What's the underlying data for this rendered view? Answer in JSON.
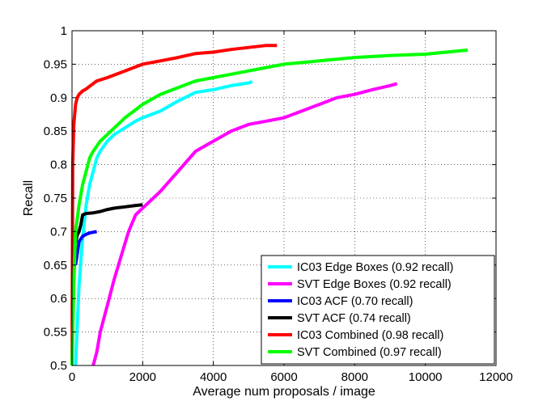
{
  "chart_data": {
    "type": "line",
    "title": "",
    "xlabel": "Average num proposals / image",
    "ylabel": "Recall",
    "xlim": [
      0,
      12000
    ],
    "ylim": [
      0.5,
      1.0
    ],
    "xticks": [
      0,
      2000,
      4000,
      6000,
      8000,
      10000,
      12000
    ],
    "xtick_labels": [
      "0",
      "2000",
      "4000",
      "6000",
      "8000",
      "10000",
      "12000"
    ],
    "yticks": [
      0.5,
      0.55,
      0.6,
      0.65,
      0.7,
      0.75,
      0.8,
      0.85,
      0.9,
      0.95,
      1.0
    ],
    "ytick_labels": [
      "0.5",
      "0.55",
      "0.6",
      "0.65",
      "0.7",
      "0.75",
      "0.8",
      "0.85",
      "0.9",
      "0.95",
      "1"
    ],
    "grid": true,
    "legend_position": "bottom-right",
    "series": [
      {
        "name": "IC03 Edge Boxes (0.92 recall)",
        "color": "#00ffff",
        "x": [
          100,
          150,
          200,
          300,
          400,
          500,
          600,
          700,
          800,
          1000,
          1200,
          1500,
          1800,
          2000,
          2500,
          3000,
          3500,
          4000,
          4500,
          5000,
          5100
        ],
        "y": [
          0.5,
          0.56,
          0.62,
          0.69,
          0.74,
          0.77,
          0.79,
          0.81,
          0.82,
          0.835,
          0.845,
          0.855,
          0.865,
          0.87,
          0.88,
          0.895,
          0.908,
          0.912,
          0.918,
          0.922,
          0.924
        ]
      },
      {
        "name": "SVT Edge Boxes (0.92 recall)",
        "color": "#ff00ff",
        "x": [
          600,
          700,
          800,
          1000,
          1200,
          1400,
          1600,
          1800,
          2000,
          2500,
          3000,
          3500,
          4000,
          4500,
          5000,
          5500,
          6000,
          6500,
          7000,
          7500,
          8000,
          8500,
          9000,
          9200
        ],
        "y": [
          0.5,
          0.52,
          0.55,
          0.59,
          0.63,
          0.665,
          0.7,
          0.725,
          0.735,
          0.76,
          0.79,
          0.82,
          0.835,
          0.85,
          0.86,
          0.865,
          0.87,
          0.88,
          0.89,
          0.9,
          0.905,
          0.912,
          0.918,
          0.921
        ]
      },
      {
        "name": "IC03 ACF (0.70 recall)",
        "color": "#0000ff",
        "x": [
          100,
          200,
          300,
          400,
          500,
          600,
          700
        ],
        "y": [
          0.65,
          0.685,
          0.693,
          0.696,
          0.698,
          0.699,
          0.7
        ]
      },
      {
        "name": "SVT ACF (0.74 recall)",
        "color": "#000000",
        "x": [
          80,
          150,
          200,
          250,
          300,
          400,
          600,
          800,
          1000,
          1200,
          1500,
          1800,
          2000
        ],
        "y": [
          0.68,
          0.695,
          0.7,
          0.71,
          0.725,
          0.727,
          0.728,
          0.73,
          0.733,
          0.735,
          0.737,
          0.739,
          0.74
        ]
      },
      {
        "name": "IC03 Combined (0.98 recall)",
        "color": "#ff0000",
        "x": [
          0,
          20,
          50,
          100,
          150,
          200,
          300,
          400,
          500,
          700,
          1000,
          1500,
          2000,
          2500,
          3000,
          3500,
          4000,
          4500,
          5000,
          5500,
          5800
        ],
        "y": [
          0.5,
          0.8,
          0.86,
          0.89,
          0.9,
          0.905,
          0.91,
          0.913,
          0.917,
          0.925,
          0.93,
          0.94,
          0.95,
          0.955,
          0.96,
          0.966,
          0.968,
          0.972,
          0.975,
          0.978,
          0.978
        ]
      },
      {
        "name": "SVT Combined (0.97 recall)",
        "color": "#00ff00",
        "x": [
          0,
          50,
          100,
          200,
          300,
          400,
          500,
          600,
          800,
          1000,
          1200,
          1500,
          2000,
          2500,
          3000,
          3500,
          4000,
          5000,
          6000,
          7000,
          8000,
          9000,
          10000,
          11000,
          11200
        ],
        "y": [
          0.5,
          0.62,
          0.7,
          0.74,
          0.77,
          0.79,
          0.81,
          0.82,
          0.835,
          0.845,
          0.855,
          0.87,
          0.89,
          0.905,
          0.915,
          0.925,
          0.93,
          0.94,
          0.95,
          0.955,
          0.96,
          0.963,
          0.965,
          0.97,
          0.971
        ]
      }
    ]
  }
}
